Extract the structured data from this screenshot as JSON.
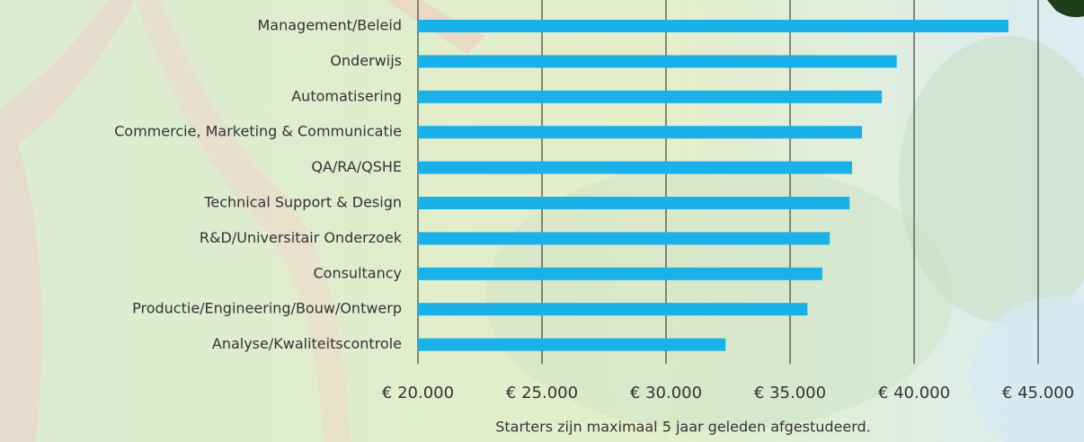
{
  "chart_data": {
    "type": "bar",
    "orientation": "horizontal",
    "categories": [
      "Management/Beleid",
      "Onderwijs",
      "Automatisering",
      "Commercie, Marketing & Communicatie",
      "QA/RA/QSHE",
      "Technical Support & Design",
      "R&D/Universitair Onderzoek",
      "Consultancy",
      "Productie/Engineering/Bouw/Ontwerp",
      "Analyse/Kwaliteitscontrole"
    ],
    "values": [
      43800,
      39300,
      38700,
      37900,
      37500,
      37400,
      36600,
      36300,
      35700,
      32400
    ],
    "color": "#1ab0e8",
    "xlim": [
      20000,
      45000
    ],
    "xticks": [
      {
        "value": 20000,
        "label": "€ 20.000"
      },
      {
        "value": 25000,
        "label": "€ 25.000"
      },
      {
        "value": 30000,
        "label": "€ 30.000"
      },
      {
        "value": 35000,
        "label": "€ 35.000"
      },
      {
        "value": 40000,
        "label": "€ 40.000"
      },
      {
        "value": 45000,
        "label": "€ 45.000"
      }
    ],
    "grid": true,
    "note": "Starters zijn maximaal 5 jaar geleden afgestudeerd."
  }
}
